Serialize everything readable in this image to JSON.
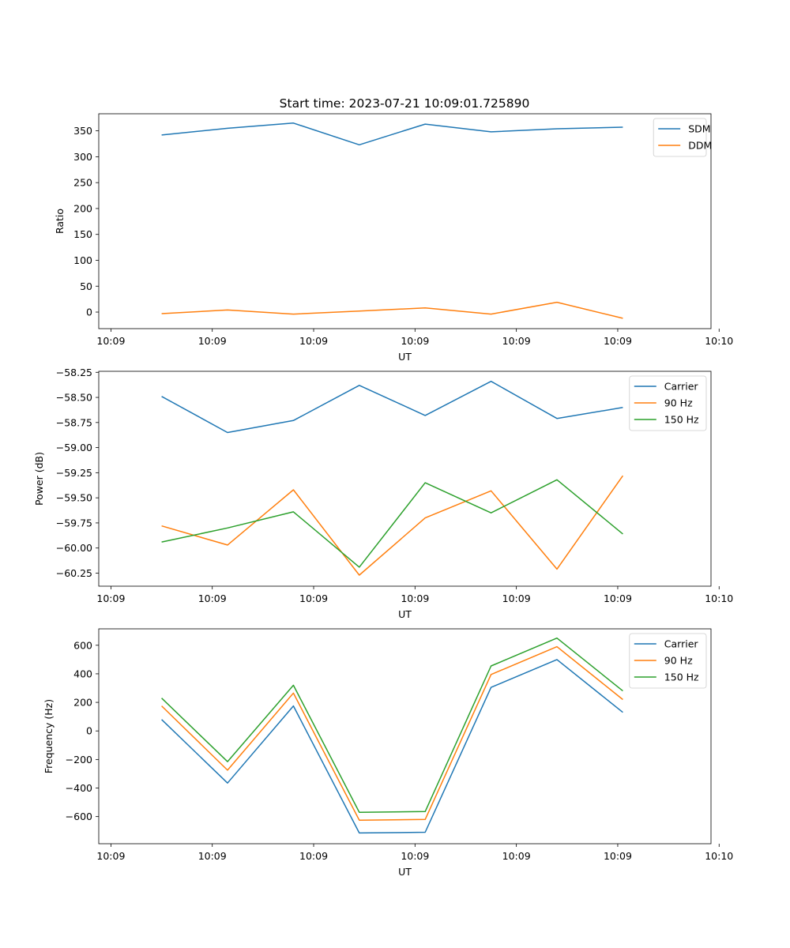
{
  "title": "Start time: 2023-07-21 10:09:01.725890",
  "chart_data": [
    {
      "type": "line",
      "ylabel": "Ratio",
      "xlabel": "UT",
      "x": [
        0.5,
        1.15,
        1.8,
        2.45,
        3.1,
        3.75,
        4.4,
        5.05
      ],
      "xlim": [
        -0.12,
        5.92
      ],
      "xticks": [
        0,
        1,
        2,
        3,
        4,
        5,
        6
      ],
      "xticklabels": [
        "10:09",
        "10:09",
        "10:09",
        "10:09",
        "10:09",
        "10:09",
        "10:10"
      ],
      "ylim": [
        -32,
        383
      ],
      "yticks": [
        0,
        50,
        100,
        150,
        200,
        250,
        300,
        350
      ],
      "yticklabels": [
        "0",
        "50",
        "100",
        "150",
        "200",
        "250",
        "300",
        "350"
      ],
      "legend_position": "top-right",
      "series": [
        {
          "name": "SDM",
          "color": "#1f77b4",
          "values": [
            342,
            355,
            365,
            323,
            363,
            348,
            354,
            357
          ]
        },
        {
          "name": "DDM",
          "color": "#ff7f0e",
          "values": [
            -3,
            4,
            -4,
            2,
            8,
            -4,
            19,
            -12
          ]
        }
      ]
    },
    {
      "type": "line",
      "ylabel": "Power (dB)",
      "xlabel": "UT",
      "x": [
        0.5,
        1.15,
        1.8,
        2.45,
        3.1,
        3.75,
        4.4,
        5.05
      ],
      "xlim": [
        -0.12,
        5.92
      ],
      "xticks": [
        0,
        1,
        2,
        3,
        4,
        5,
        6
      ],
      "xticklabels": [
        "10:09",
        "10:09",
        "10:09",
        "10:09",
        "10:09",
        "10:09",
        "10:10"
      ],
      "ylim": [
        -60.38,
        -58.24
      ],
      "yticks": [
        -60.25,
        -60.0,
        -59.75,
        -59.5,
        -59.25,
        -59.0,
        -58.75,
        -58.5,
        -58.25
      ],
      "yticklabels": [
        "−60.25",
        "−60.00",
        "−59.75",
        "−59.50",
        "−59.25",
        "−59.00",
        "−58.75",
        "−58.50",
        "−58.25"
      ],
      "legend_position": "top-right",
      "series": [
        {
          "name": "Carrier",
          "color": "#1f77b4",
          "values": [
            -58.49,
            -58.85,
            -58.73,
            -58.38,
            -58.68,
            -58.34,
            -58.71,
            -58.6
          ]
        },
        {
          "name": "90 Hz",
          "color": "#ff7f0e",
          "values": [
            -59.78,
            -59.97,
            -59.42,
            -60.27,
            -59.7,
            -59.43,
            -60.21,
            -59.28
          ]
        },
        {
          "name": "150 Hz",
          "color": "#2ca02c",
          "values": [
            -59.94,
            -59.8,
            -59.64,
            -60.19,
            -59.35,
            -59.65,
            -59.32,
            -59.86
          ]
        }
      ]
    },
    {
      "type": "line",
      "ylabel": "Frequency (Hz)",
      "xlabel": "UT",
      "x": [
        0.5,
        1.15,
        1.8,
        2.45,
        3.1,
        3.75,
        4.4,
        5.05
      ],
      "xlim": [
        -0.12,
        5.92
      ],
      "xticks": [
        0,
        1,
        2,
        3,
        4,
        5,
        6
      ],
      "xticklabels": [
        "10:09",
        "10:09",
        "10:09",
        "10:09",
        "10:09",
        "10:09",
        "10:10"
      ],
      "ylim": [
        -790,
        715
      ],
      "yticks": [
        -600,
        -400,
        -200,
        0,
        200,
        400,
        600
      ],
      "yticklabels": [
        "−600",
        "−400",
        "−200",
        "0",
        "200",
        "400",
        "600"
      ],
      "legend_position": "top-right",
      "series": [
        {
          "name": "Carrier",
          "color": "#1f77b4",
          "values": [
            80,
            -365,
            175,
            -715,
            -710,
            305,
            500,
            130
          ]
        },
        {
          "name": "90 Hz",
          "color": "#ff7f0e",
          "values": [
            175,
            -275,
            265,
            -625,
            -620,
            395,
            590,
            220
          ]
        },
        {
          "name": "150 Hz",
          "color": "#2ca02c",
          "values": [
            230,
            -215,
            320,
            -570,
            -565,
            455,
            650,
            280
          ]
        }
      ]
    }
  ]
}
